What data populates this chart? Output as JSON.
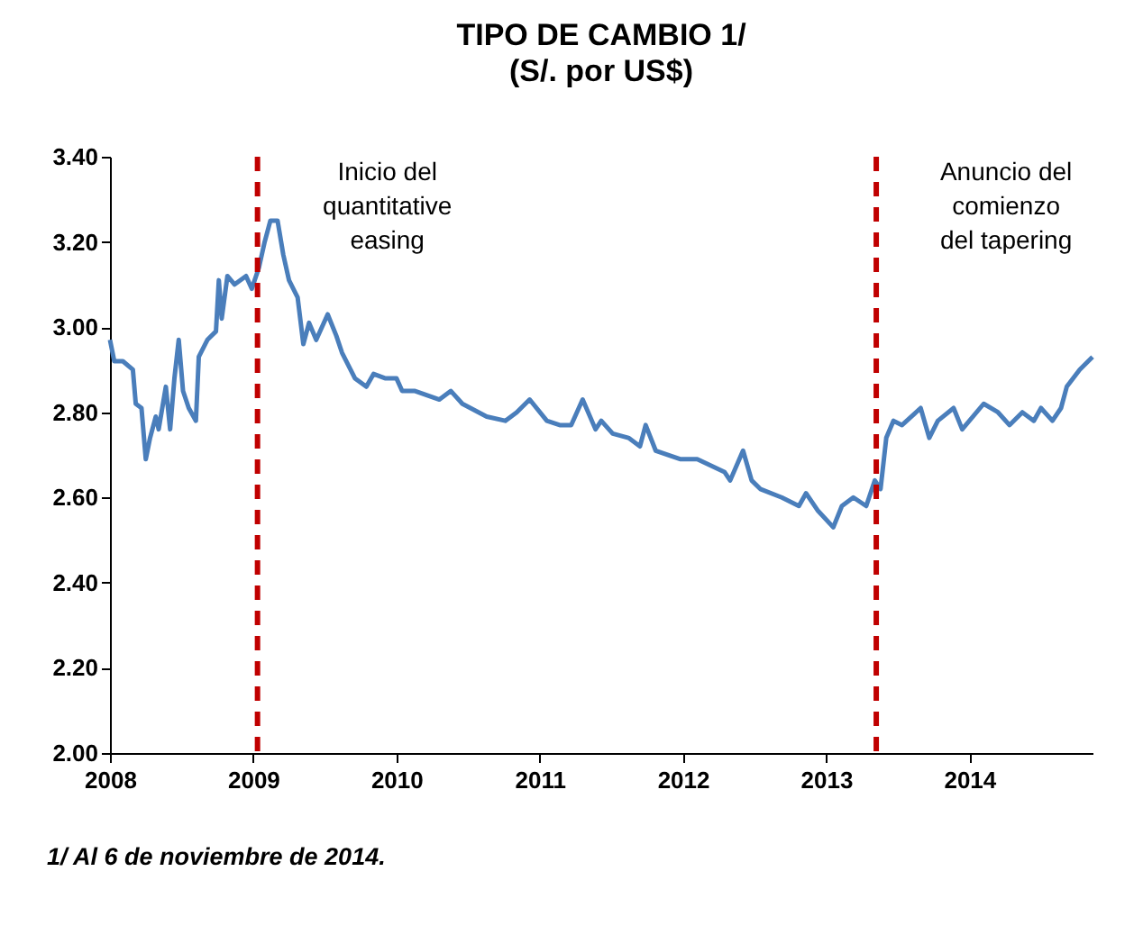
{
  "chart_data": {
    "type": "line",
    "title": "TIPO DE CAMBIO 1/",
    "subtitle": "(S/. por US$)",
    "x": [
      2008.0,
      2008.03,
      2008.09,
      2008.16,
      2008.18,
      2008.22,
      2008.25,
      2008.28,
      2008.32,
      2008.34,
      2008.39,
      2008.42,
      2008.45,
      2008.48,
      2008.51,
      2008.55,
      2008.6,
      2008.62,
      2008.68,
      2008.74,
      2008.76,
      2008.78,
      2008.82,
      2008.87,
      2008.95,
      2008.99,
      2009.04,
      2009.08,
      2009.12,
      2009.17,
      2009.21,
      2009.25,
      2009.31,
      2009.35,
      2009.39,
      2009.44,
      2009.52,
      2009.58,
      2009.62,
      2009.71,
      2009.79,
      2009.84,
      2009.92,
      2010.0,
      2010.04,
      2010.13,
      2010.3,
      2010.38,
      2010.46,
      2010.63,
      2010.76,
      2010.84,
      2010.93,
      2011.05,
      2011.14,
      2011.22,
      2011.3,
      2011.39,
      2011.43,
      2011.51,
      2011.62,
      2011.7,
      2011.74,
      2011.81,
      2011.98,
      2012.1,
      2012.29,
      2012.33,
      2012.42,
      2012.48,
      2012.54,
      2012.69,
      2012.81,
      2012.86,
      2012.94,
      2013.05,
      2013.11,
      2013.19,
      2013.28,
      2013.34,
      2013.38,
      2013.42,
      2013.47,
      2013.53,
      2013.66,
      2013.72,
      2013.78,
      2013.89,
      2013.95,
      2014.1,
      2014.2,
      2014.28,
      2014.37,
      2014.45,
      2014.5,
      2014.58,
      2014.64,
      2014.68,
      2014.77,
      2014.86
    ],
    "series": [
      {
        "color": "#4a7ebb",
        "values": [
          2.97,
          2.92,
          2.92,
          2.9,
          2.82,
          2.81,
          2.69,
          2.74,
          2.79,
          2.76,
          2.86,
          2.76,
          2.88,
          2.97,
          2.85,
          2.81,
          2.78,
          2.93,
          2.97,
          2.99,
          3.11,
          3.02,
          3.12,
          3.1,
          3.12,
          3.09,
          3.14,
          3.2,
          3.25,
          3.25,
          3.17,
          3.11,
          3.07,
          2.96,
          3.01,
          2.97,
          3.03,
          2.98,
          2.94,
          2.88,
          2.86,
          2.89,
          2.88,
          2.88,
          2.85,
          2.85,
          2.83,
          2.85,
          2.82,
          2.79,
          2.78,
          2.8,
          2.83,
          2.78,
          2.77,
          2.77,
          2.83,
          2.76,
          2.78,
          2.75,
          2.74,
          2.72,
          2.77,
          2.71,
          2.69,
          2.69,
          2.66,
          2.64,
          2.71,
          2.64,
          2.62,
          2.6,
          2.58,
          2.61,
          2.57,
          2.53,
          2.58,
          2.6,
          2.58,
          2.64,
          2.62,
          2.74,
          2.78,
          2.77,
          2.81,
          2.74,
          2.78,
          2.81,
          2.76,
          2.82,
          2.8,
          2.77,
          2.8,
          2.78,
          2.81,
          2.78,
          2.81,
          2.86,
          2.9,
          2.93
        ]
      }
    ],
    "xlim": [
      2008,
      2014.86
    ],
    "xticks": [
      2008,
      2009,
      2010,
      2011,
      2012,
      2013,
      2014
    ],
    "ylim": [
      2.0,
      3.4
    ],
    "yticks": [
      {
        "value": 2.0,
        "label": "2.00"
      },
      {
        "value": 2.2,
        "label": "2.20"
      },
      {
        "value": 2.4,
        "label": "2.40"
      },
      {
        "value": 2.6,
        "label": "2.60"
      },
      {
        "value": 2.8,
        "label": "2.80"
      },
      {
        "value": 3.0,
        "label": "3.00"
      },
      {
        "value": 3.2,
        "label": "3.20"
      },
      {
        "value": 3.4,
        "label": "3.40"
      }
    ],
    "ref_lines": [
      {
        "axis": "x",
        "value": 2009.03,
        "label": "Inicio del quantitative easing",
        "color": "#c00000",
        "line_style": "dashed"
      },
      {
        "axis": "x",
        "value": 2013.35,
        "label": "Anuncio del comienzo del tapering",
        "color": "#c00000",
        "line_style": "dashed"
      }
    ],
    "annotations": [
      "1/ Al 6 de noviembre de 2014."
    ],
    "grid": false,
    "line_style": "solid"
  }
}
